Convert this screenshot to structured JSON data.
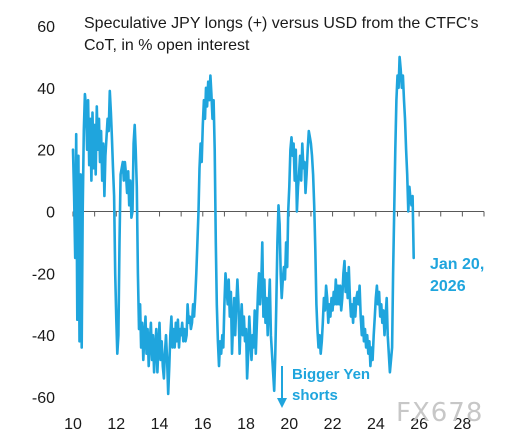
{
  "chart_data": {
    "type": "line",
    "title_lines": [
      "Speculative JPY longs (+) versus USD from the CTFC's",
      "CoT, in % open interest"
    ],
    "xlabel": "",
    "ylabel": "",
    "xlim": [
      10,
      29
    ],
    "ylim": [
      -60,
      60
    ],
    "x_ticks": [
      10,
      12,
      14,
      16,
      18,
      20,
      22,
      24,
      26,
      28
    ],
    "y_ticks": [
      60,
      40,
      20,
      0,
      -20,
      -40,
      -60
    ],
    "grid": false,
    "line_color": "#1fa5dd",
    "series": [
      {
        "values": [
          [
            10.0,
            20
          ],
          [
            10.05,
            5
          ],
          [
            10.1,
            -15
          ],
          [
            10.15,
            25
          ],
          [
            10.2,
            -35
          ],
          [
            10.25,
            18
          ],
          [
            10.3,
            -42
          ],
          [
            10.35,
            12
          ],
          [
            10.4,
            -44
          ],
          [
            10.45,
            0
          ],
          [
            10.5,
            26
          ],
          [
            10.55,
            38
          ],
          [
            10.6,
            34
          ],
          [
            10.65,
            20
          ],
          [
            10.7,
            36
          ],
          [
            10.75,
            15
          ],
          [
            10.8,
            30
          ],
          [
            10.85,
            10
          ],
          [
            10.9,
            32
          ],
          [
            10.95,
            14
          ],
          [
            11.0,
            28
          ],
          [
            11.05,
            12
          ],
          [
            11.1,
            34
          ],
          [
            11.15,
            20
          ],
          [
            11.2,
            30
          ],
          [
            11.25,
            16
          ],
          [
            11.3,
            26
          ],
          [
            11.35,
            10
          ],
          [
            11.4,
            22
          ],
          [
            11.45,
            5
          ],
          [
            11.5,
            18
          ],
          [
            11.55,
            24
          ],
          [
            11.6,
            30
          ],
          [
            11.65,
            26
          ],
          [
            11.7,
            39
          ],
          [
            11.75,
            32
          ],
          [
            11.8,
            24
          ],
          [
            11.85,
            14
          ],
          [
            11.9,
            5
          ],
          [
            11.95,
            -20
          ],
          [
            12.0,
            -35
          ],
          [
            12.05,
            -46
          ],
          [
            12.1,
            -40
          ],
          [
            12.15,
            -10
          ],
          [
            12.2,
            12
          ],
          [
            12.25,
            14
          ],
          [
            12.3,
            16
          ],
          [
            12.35,
            10
          ],
          [
            12.4,
            16
          ],
          [
            12.45,
            12
          ],
          [
            12.5,
            6
          ],
          [
            12.55,
            13
          ],
          [
            12.6,
            2
          ],
          [
            12.65,
            10
          ],
          [
            12.7,
            -2
          ],
          [
            12.75,
            0
          ],
          [
            12.8,
            22
          ],
          [
            12.85,
            28
          ],
          [
            12.9,
            20
          ],
          [
            12.95,
            8
          ],
          [
            13.0,
            -20
          ],
          [
            13.05,
            -38
          ],
          [
            13.1,
            -30
          ],
          [
            13.15,
            -44
          ],
          [
            13.2,
            -36
          ],
          [
            13.25,
            -48
          ],
          [
            13.3,
            -40
          ],
          [
            13.35,
            -34
          ],
          [
            13.4,
            -46
          ],
          [
            13.45,
            -38
          ],
          [
            13.5,
            -50
          ],
          [
            13.55,
            -42
          ],
          [
            13.6,
            -36
          ],
          [
            13.65,
            -48
          ],
          [
            13.7,
            -40
          ],
          [
            13.75,
            -52
          ],
          [
            13.8,
            -44
          ],
          [
            13.85,
            -38
          ],
          [
            13.9,
            -52
          ],
          [
            13.95,
            -44
          ],
          [
            14.0,
            -36
          ],
          [
            14.05,
            -48
          ],
          [
            14.1,
            -42
          ],
          [
            14.15,
            -50
          ],
          [
            14.2,
            -54
          ],
          [
            14.25,
            -46
          ],
          [
            14.3,
            -40
          ],
          [
            14.35,
            -48
          ],
          [
            14.4,
            -59
          ],
          [
            14.45,
            -50
          ],
          [
            14.5,
            -40
          ],
          [
            14.55,
            -34
          ],
          [
            14.6,
            -44
          ],
          [
            14.65,
            -38
          ],
          [
            14.7,
            -44
          ],
          [
            14.75,
            -36
          ],
          [
            14.8,
            -42
          ],
          [
            14.85,
            -35
          ],
          [
            14.9,
            -44
          ],
          [
            14.95,
            -38
          ],
          [
            15.0,
            -40
          ],
          [
            15.05,
            -36
          ],
          [
            15.1,
            -42
          ],
          [
            15.15,
            -38
          ],
          [
            15.2,
            -42
          ],
          [
            15.25,
            -40
          ],
          [
            15.3,
            -30
          ],
          [
            15.35,
            -36
          ],
          [
            15.4,
            -34
          ],
          [
            15.45,
            -38
          ],
          [
            15.5,
            -36
          ],
          [
            15.55,
            -30
          ],
          [
            15.6,
            -34
          ],
          [
            15.65,
            -28
          ],
          [
            15.7,
            -20
          ],
          [
            15.75,
            -10
          ],
          [
            15.8,
            0
          ],
          [
            15.85,
            14
          ],
          [
            15.9,
            22
          ],
          [
            15.95,
            16
          ],
          [
            16.0,
            28
          ],
          [
            16.05,
            36
          ],
          [
            16.1,
            30
          ],
          [
            16.15,
            40
          ],
          [
            16.2,
            34
          ],
          [
            16.25,
            42
          ],
          [
            16.3,
            36
          ],
          [
            16.35,
            44
          ],
          [
            16.4,
            38
          ],
          [
            16.45,
            30
          ],
          [
            16.5,
            36
          ],
          [
            16.55,
            20
          ],
          [
            16.6,
            -10
          ],
          [
            16.65,
            -30
          ],
          [
            16.7,
            -42
          ],
          [
            16.75,
            -50
          ],
          [
            16.8,
            -42
          ],
          [
            16.85,
            -46
          ],
          [
            16.9,
            -40
          ],
          [
            16.95,
            -44
          ],
          [
            17.0,
            -30
          ],
          [
            17.05,
            -20
          ],
          [
            17.1,
            -25
          ],
          [
            17.15,
            -30
          ],
          [
            17.2,
            -22
          ],
          [
            17.25,
            -34
          ],
          [
            17.3,
            -26
          ],
          [
            17.35,
            -46
          ],
          [
            17.4,
            -36
          ],
          [
            17.45,
            -28
          ],
          [
            17.5,
            -40
          ],
          [
            17.55,
            -30
          ],
          [
            17.6,
            -22
          ],
          [
            17.65,
            -30
          ],
          [
            17.7,
            -46
          ],
          [
            17.75,
            -36
          ],
          [
            17.8,
            -30
          ],
          [
            17.85,
            -40
          ],
          [
            17.9,
            -34
          ],
          [
            17.95,
            -42
          ],
          [
            18.0,
            -38
          ],
          [
            18.05,
            -54
          ],
          [
            18.1,
            -46
          ],
          [
            18.15,
            -34
          ],
          [
            18.2,
            -42
          ],
          [
            18.25,
            -48
          ],
          [
            18.3,
            -40
          ],
          [
            18.35,
            -44
          ],
          [
            18.4,
            -32
          ],
          [
            18.45,
            -46
          ],
          [
            18.5,
            -36
          ],
          [
            18.55,
            -26
          ],
          [
            18.6,
            -20
          ],
          [
            18.65,
            -30
          ],
          [
            18.7,
            -24
          ],
          [
            18.75,
            -10
          ],
          [
            18.8,
            -34
          ],
          [
            18.85,
            -22
          ],
          [
            18.9,
            -36
          ],
          [
            18.95,
            -28
          ],
          [
            19.0,
            -40
          ],
          [
            19.05,
            -30
          ],
          [
            19.1,
            -22
          ],
          [
            19.15,
            -40
          ],
          [
            19.2,
            -46
          ],
          [
            19.25,
            -52
          ],
          [
            19.3,
            -58
          ],
          [
            19.35,
            -46
          ],
          [
            19.4,
            -30
          ],
          [
            19.45,
            -10
          ],
          [
            19.5,
            2
          ],
          [
            19.55,
            -4
          ],
          [
            19.6,
            -20
          ],
          [
            19.65,
            -28
          ],
          [
            19.7,
            -22
          ],
          [
            19.75,
            -18
          ],
          [
            19.8,
            -22
          ],
          [
            19.85,
            -10
          ],
          [
            19.9,
            -18
          ],
          [
            19.95,
            0
          ],
          [
            20.0,
            8
          ],
          [
            20.05,
            20
          ],
          [
            20.1,
            24
          ],
          [
            20.15,
            18
          ],
          [
            20.2,
            22
          ],
          [
            20.25,
            10
          ],
          [
            20.3,
            20
          ],
          [
            20.35,
            0
          ],
          [
            20.4,
            8
          ],
          [
            20.45,
            12
          ],
          [
            20.5,
            18
          ],
          [
            20.55,
            10
          ],
          [
            20.6,
            22
          ],
          [
            20.65,
            14
          ],
          [
            20.7,
            16
          ],
          [
            20.75,
            6
          ],
          [
            20.8,
            12
          ],
          [
            20.85,
            20
          ],
          [
            20.9,
            26
          ],
          [
            20.95,
            24
          ],
          [
            21.0,
            22
          ],
          [
            21.05,
            18
          ],
          [
            21.1,
            12
          ],
          [
            21.15,
            2
          ],
          [
            21.2,
            -12
          ],
          [
            21.25,
            -30
          ],
          [
            21.3,
            -38
          ],
          [
            21.35,
            -44
          ],
          [
            21.4,
            -40
          ],
          [
            21.45,
            -46
          ],
          [
            21.5,
            -42
          ],
          [
            21.55,
            -36
          ],
          [
            21.6,
            -28
          ],
          [
            21.65,
            -32
          ],
          [
            21.7,
            -24
          ],
          [
            21.75,
            -28
          ],
          [
            21.8,
            -36
          ],
          [
            21.85,
            -30
          ],
          [
            21.9,
            -34
          ],
          [
            21.95,
            -28
          ],
          [
            22.0,
            -32
          ],
          [
            22.05,
            -26
          ],
          [
            22.1,
            -30
          ],
          [
            22.15,
            -22
          ],
          [
            22.2,
            -30
          ],
          [
            22.25,
            -24
          ],
          [
            22.3,
            -30
          ],
          [
            22.35,
            -24
          ],
          [
            22.4,
            -32
          ],
          [
            22.45,
            -28
          ],
          [
            22.5,
            -20
          ],
          [
            22.55,
            -16
          ],
          [
            22.6,
            -26
          ],
          [
            22.65,
            -20
          ],
          [
            22.7,
            -28
          ],
          [
            22.75,
            -18
          ],
          [
            22.8,
            -28
          ],
          [
            22.85,
            -34
          ],
          [
            22.9,
            -30
          ],
          [
            22.95,
            -36
          ],
          [
            23.0,
            -28
          ],
          [
            23.05,
            -34
          ],
          [
            23.1,
            -28
          ],
          [
            23.15,
            -26
          ],
          [
            23.2,
            -30
          ],
          [
            23.25,
            -24
          ],
          [
            23.3,
            -34
          ],
          [
            23.35,
            -40
          ],
          [
            23.4,
            -34
          ],
          [
            23.45,
            -42
          ],
          [
            23.5,
            -38
          ],
          [
            23.55,
            -44
          ],
          [
            23.6,
            -40
          ],
          [
            23.65,
            -46
          ],
          [
            23.7,
            -42
          ],
          [
            23.75,
            -50
          ],
          [
            23.8,
            -44
          ],
          [
            23.85,
            -48
          ],
          [
            23.9,
            -40
          ],
          [
            23.95,
            -34
          ],
          [
            24.0,
            -28
          ],
          [
            24.05,
            -24
          ],
          [
            24.1,
            -30
          ],
          [
            24.15,
            -26
          ],
          [
            24.2,
            -34
          ],
          [
            24.25,
            -30
          ],
          [
            24.3,
            -36
          ],
          [
            24.35,
            -32
          ],
          [
            24.4,
            -40
          ],
          [
            24.45,
            -34
          ],
          [
            24.5,
            -28
          ],
          [
            24.55,
            -40
          ],
          [
            24.6,
            -46
          ],
          [
            24.65,
            -52
          ],
          [
            24.7,
            -48
          ],
          [
            24.75,
            -44
          ],
          [
            24.8,
            -20
          ],
          [
            24.85,
            0
          ],
          [
            24.9,
            20
          ],
          [
            24.95,
            36
          ],
          [
            25.0,
            44
          ],
          [
            25.05,
            40
          ],
          [
            25.1,
            50
          ],
          [
            25.15,
            46
          ],
          [
            25.2,
            40
          ],
          [
            25.25,
            44
          ],
          [
            25.3,
            36
          ],
          [
            25.35,
            30
          ],
          [
            25.4,
            20
          ],
          [
            25.45,
            12
          ],
          [
            25.5,
            0
          ],
          [
            25.55,
            8
          ],
          [
            25.6,
            4
          ],
          [
            25.65,
            2
          ],
          [
            25.7,
            5
          ],
          [
            25.75,
            -15
          ]
        ]
      }
    ]
  },
  "annotations": {
    "date_lines": [
      "Jan 20,",
      "2026"
    ],
    "shorts_lines": [
      "Bigger Yen",
      "shorts"
    ],
    "arrow_color": "#1fa5dd"
  },
  "watermark": "FX678"
}
